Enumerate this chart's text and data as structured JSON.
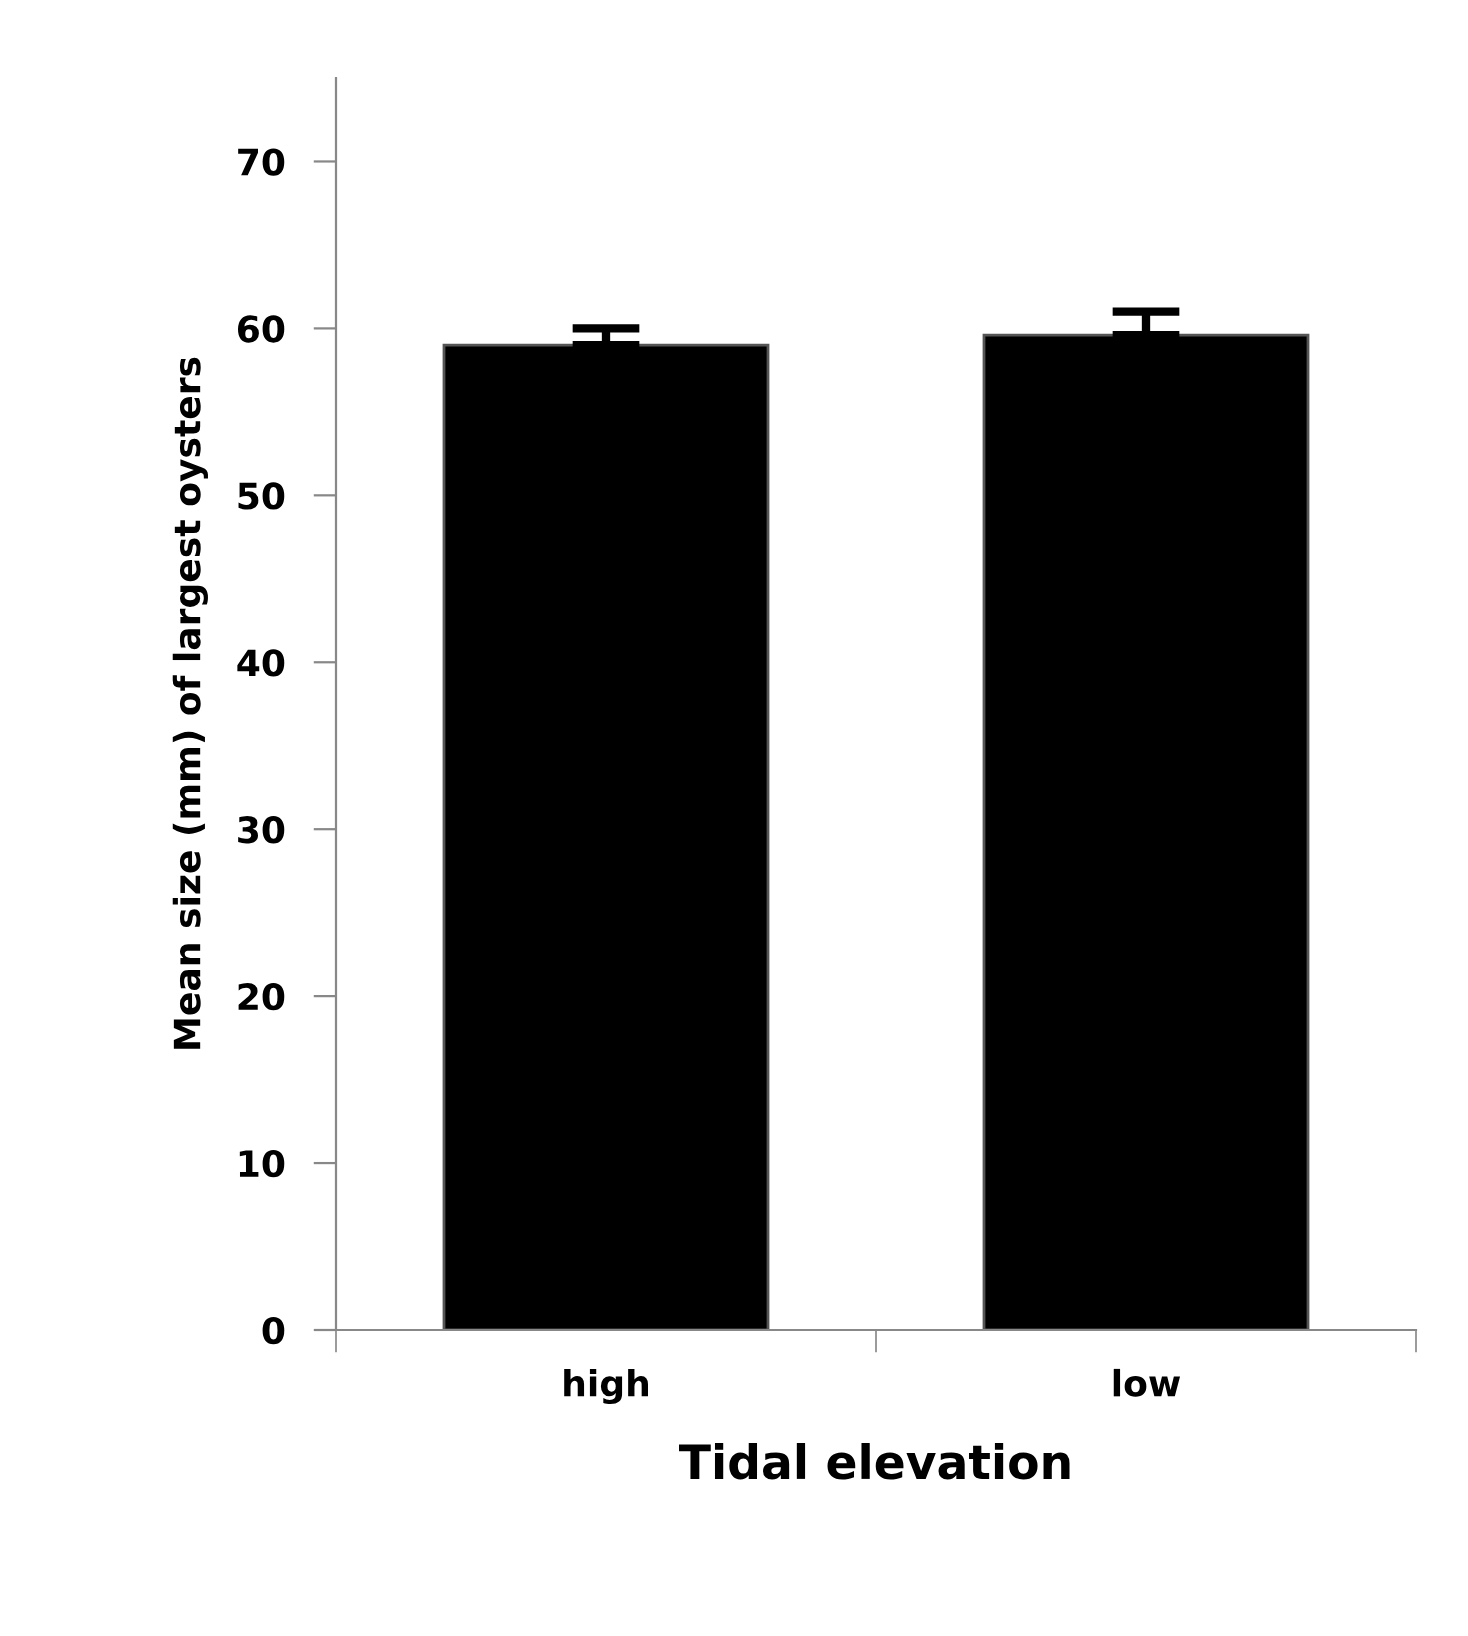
{
  "chart_data": {
    "type": "bar",
    "xlabel": "Tidal elevation",
    "ylabel": "Mean size (mm) of largest oysters",
    "categories": [
      "high",
      "low"
    ],
    "values": [
      59.0,
      59.6
    ],
    "color": "#000000",
    "errors": [
      [
        59.0,
        60.0
      ],
      [
        59.6,
        61.0
      ]
    ],
    "ylim": [
      0,
      75
    ],
    "yticks": [
      0,
      10,
      20,
      30,
      40,
      50,
      60,
      70
    ],
    "grid": false,
    "legend": false
  }
}
